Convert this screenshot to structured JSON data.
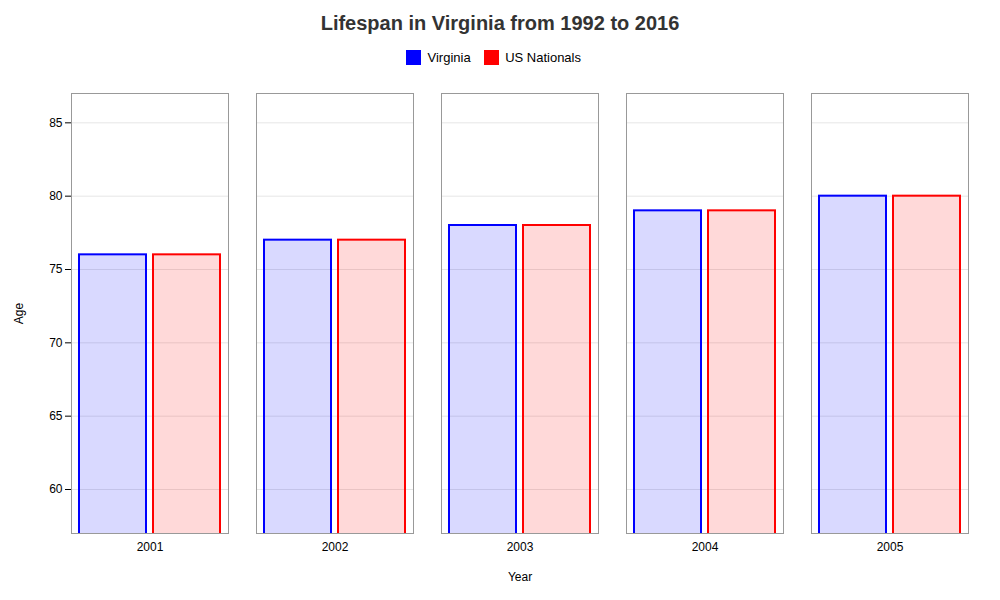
{
  "chart_data": {
    "type": "bar",
    "title": "Lifespan in Virginia from 1992 to 2016",
    "categories": [
      "2001",
      "2002",
      "2003",
      "2004",
      "2005"
    ],
    "series": [
      {
        "name": "Virginia",
        "color": "#0000ff",
        "values": [
          76,
          77,
          78,
          79,
          80
        ]
      },
      {
        "name": "US Nationals",
        "color": "#ff0000",
        "values": [
          76,
          77,
          78,
          79,
          80
        ]
      }
    ],
    "xlabel": "Year",
    "ylabel": "Age",
    "ylim": [
      57,
      87
    ],
    "yticks": [
      60,
      65,
      70,
      75,
      80,
      85
    ],
    "grid": true,
    "legend": "top"
  }
}
